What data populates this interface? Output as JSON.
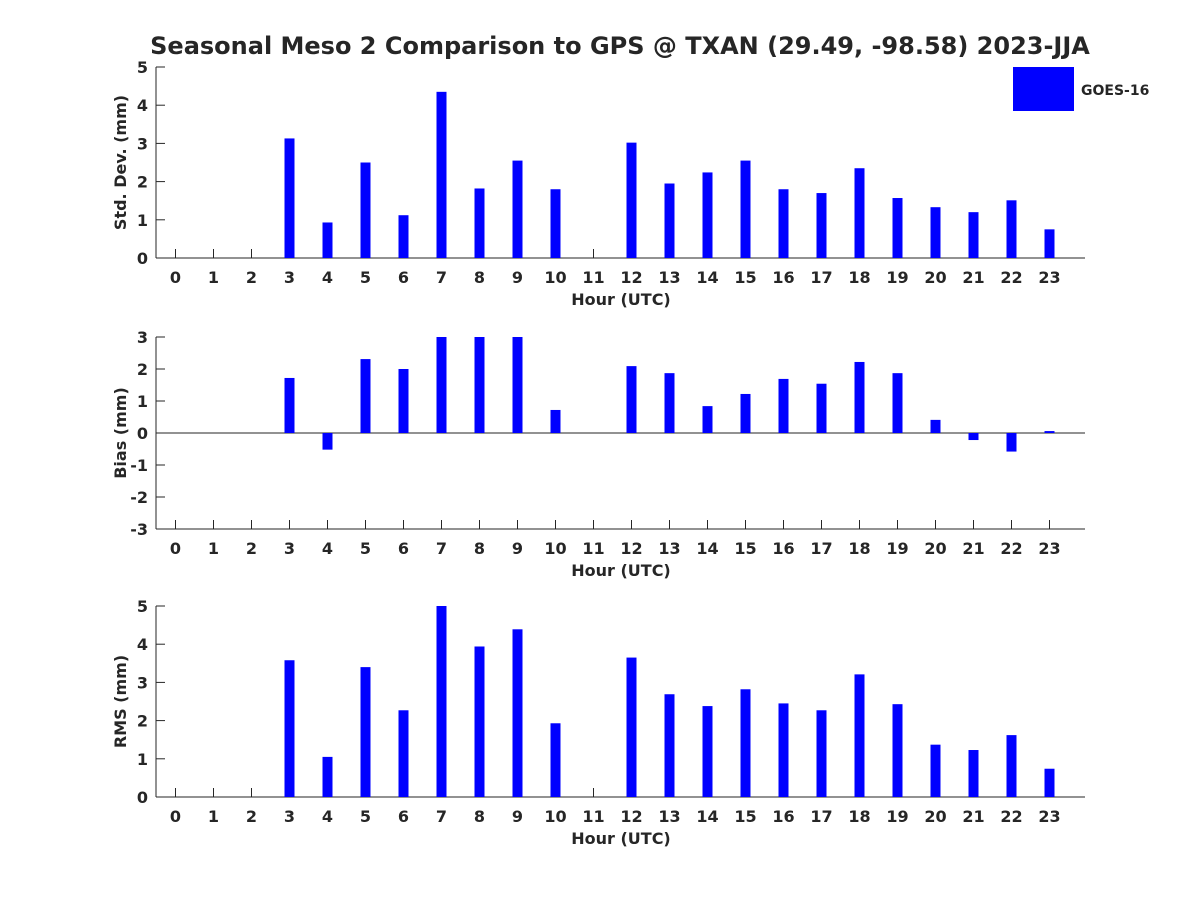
{
  "figure": {
    "title": "Seasonal Meso 2 Comparison to GPS @ TXAN (29.49, -98.58) 2023-JJA",
    "legend": {
      "label": "GOES-16",
      "color": "#0000ff",
      "placement": "top-right"
    }
  },
  "chart_data": [
    {
      "type": "bar",
      "xlabel": "Hour (UTC)",
      "ylabel": "Std. Dev. (mm)",
      "ylim": [
        0,
        5
      ],
      "yticks": [
        "0",
        "1",
        "2",
        "3",
        "4",
        "5"
      ],
      "categories": [
        "0",
        "1",
        "2",
        "3",
        "4",
        "5",
        "6",
        "7",
        "8",
        "9",
        "10",
        "11",
        "12",
        "13",
        "14",
        "15",
        "16",
        "17",
        "18",
        "19",
        "20",
        "21",
        "22",
        "23"
      ],
      "series": [
        {
          "name": "GOES-16",
          "color": "#0000ff",
          "values": [
            null,
            null,
            null,
            3.13,
            0.93,
            2.5,
            1.12,
            4.35,
            1.82,
            2.55,
            1.8,
            null,
            3.02,
            1.95,
            2.24,
            2.55,
            1.8,
            1.7,
            2.35,
            1.57,
            1.33,
            1.2,
            1.51,
            0.75
          ]
        }
      ]
    },
    {
      "type": "bar",
      "xlabel": "Hour (UTC)",
      "ylabel": "Bias (mm)",
      "ylim": [
        -3,
        3
      ],
      "yticks": [
        "-3",
        "-2",
        "-1",
        "0",
        "1",
        "2",
        "3"
      ],
      "categories": [
        "0",
        "1",
        "2",
        "3",
        "4",
        "5",
        "6",
        "7",
        "8",
        "9",
        "10",
        "11",
        "12",
        "13",
        "14",
        "15",
        "16",
        "17",
        "18",
        "19",
        "20",
        "21",
        "22",
        "23"
      ],
      "series": [
        {
          "name": "GOES-16",
          "color": "#0000ff",
          "values": [
            null,
            null,
            null,
            1.72,
            -0.52,
            2.31,
            2.0,
            3.0,
            3.0,
            3.0,
            0.72,
            null,
            2.09,
            1.87,
            0.84,
            1.22,
            1.69,
            1.54,
            2.22,
            1.87,
            0.41,
            -0.22,
            -0.58,
            0.06
          ]
        }
      ]
    },
    {
      "type": "bar",
      "xlabel": "Hour (UTC)",
      "ylabel": "RMS (mm)",
      "ylim": [
        0,
        5
      ],
      "yticks": [
        "0",
        "1",
        "2",
        "3",
        "4",
        "5"
      ],
      "categories": [
        "0",
        "1",
        "2",
        "3",
        "4",
        "5",
        "6",
        "7",
        "8",
        "9",
        "10",
        "11",
        "12",
        "13",
        "14",
        "15",
        "16",
        "17",
        "18",
        "19",
        "20",
        "21",
        "22",
        "23"
      ],
      "series": [
        {
          "name": "GOES-16",
          "color": "#0000ff",
          "values": [
            null,
            null,
            null,
            3.58,
            1.05,
            3.4,
            2.27,
            5.0,
            3.94,
            4.39,
            1.93,
            null,
            3.65,
            2.69,
            2.38,
            2.82,
            2.45,
            2.27,
            3.21,
            2.43,
            1.37,
            1.23,
            1.62,
            0.74
          ]
        }
      ]
    }
  ]
}
